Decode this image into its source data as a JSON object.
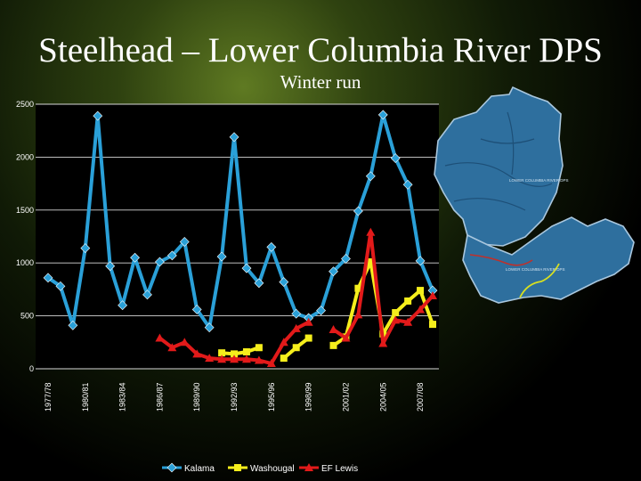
{
  "slide": {
    "title": "Steelhead – Lower Columbia River DPS",
    "subtitle": "Winter run"
  },
  "map": {
    "label_1": "LOWER COLUMBIA RIVER DPS",
    "label_2": "LOWER COLUMBIA RIVER DPS",
    "colors": {
      "land": "#2e6f9e",
      "outline": "#a9c7de",
      "river_red": "#c0302a",
      "river_yellow": "#d8e020"
    }
  },
  "chart_data": {
    "type": "line",
    "x": [
      "1977/78",
      "1978/79",
      "1979/80",
      "1980/81",
      "1981/82",
      "1982/83",
      "1983/84",
      "1984/85",
      "1985/86",
      "1986/87",
      "1987/88",
      "1988/89",
      "1989/90",
      "1990/91",
      "1991/92",
      "1992/93",
      "1993/94",
      "1994/95",
      "1995/96",
      "1996/97",
      "1997/98",
      "1998/99",
      "1999/00",
      "2000/01",
      "2001/02",
      "2002/03",
      "2003/04",
      "2004/05",
      "2005/06",
      "2006/07",
      "2007/08",
      "2008/09"
    ],
    "xticklabels": [
      "1977/78",
      "",
      "",
      "1980/81",
      "",
      "",
      "1983/84",
      "",
      "",
      "1986/87",
      "",
      "",
      "1989/90",
      "",
      "",
      "1992/93",
      "",
      "",
      "1995/96",
      "",
      "",
      "1998/99",
      "",
      "",
      "2001/02",
      "",
      "",
      "2004/05",
      "",
      "",
      "2007/08",
      ""
    ],
    "yticks": [
      0,
      500,
      1000,
      1500,
      2000,
      2500
    ],
    "ylim": [
      0,
      2500
    ],
    "grid": true,
    "legend": "bottom",
    "series": [
      {
        "name": "Kalama",
        "color": "#2aa0d8",
        "values": [
          860,
          780,
          410,
          1140,
          2390,
          970,
          600,
          1050,
          700,
          1010,
          1070,
          1200,
          560,
          390,
          1060,
          2190,
          950,
          810,
          1150,
          820,
          520,
          480,
          550,
          920,
          1040,
          1490,
          1820,
          2400,
          1990,
          1740,
          1020,
          740
        ]
      },
      {
        "name": "Washougal",
        "color": "#f5ee1c",
        "values": [
          null,
          null,
          null,
          null,
          null,
          null,
          null,
          null,
          null,
          null,
          null,
          null,
          null,
          null,
          150,
          140,
          160,
          200,
          null,
          100,
          200,
          290,
          null,
          220,
          300,
          760,
          1010,
          330,
          530,
          640,
          740,
          420
        ]
      },
      {
        "name": "EF Lewis",
        "color": "#e21a1a",
        "values": [
          null,
          null,
          null,
          null,
          null,
          null,
          null,
          null,
          null,
          290,
          200,
          250,
          140,
          100,
          90,
          90,
          90,
          80,
          50,
          250,
          380,
          440,
          null,
          370,
          290,
          510,
          1290,
          240,
          460,
          440,
          560,
          690
        ]
      }
    ]
  }
}
